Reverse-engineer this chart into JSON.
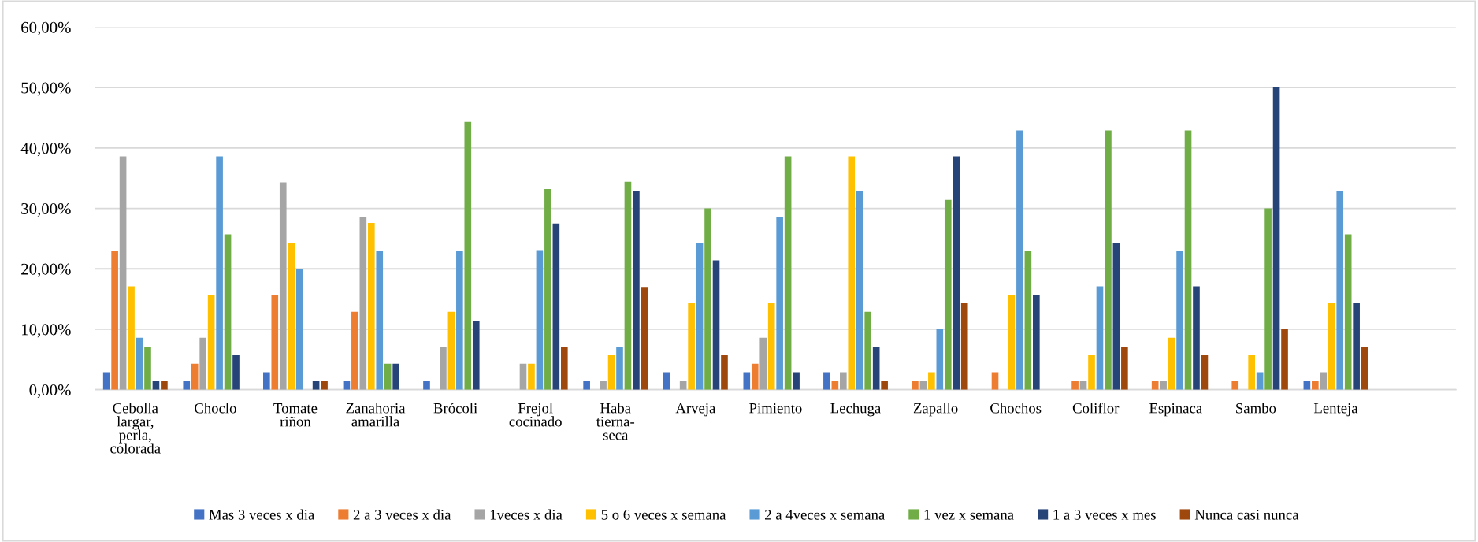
{
  "chart_data": {
    "type": "bar",
    "categories": [
      "Cebolla\nlargar,\nperla,\ncolorada",
      "Choclo",
      "Tomate\nriñon",
      "Zanahoria\namarilla",
      "Brócoli",
      "Frejol\ncocinado",
      "Haba\ntierna-\nseca",
      "Arveja",
      "Pimiento",
      "Lechuga",
      "Zapallo",
      "Chochos",
      "Coliflor",
      "Espinaca",
      "Sambo",
      "Lenteja",
      null
    ],
    "series": [
      {
        "name": "Mas 3 veces x dia",
        "color": "#4472c4",
        "values": [
          2.9,
          1.4,
          2.9,
          1.4,
          1.4,
          0,
          1.4,
          2.9,
          2.9,
          2.9,
          0,
          0,
          0,
          0,
          0,
          1.4,
          null
        ]
      },
      {
        "name": "2 a 3 veces x dia",
        "color": "#ed7d31",
        "values": [
          22.9,
          4.3,
          15.7,
          12.9,
          0,
          0,
          0,
          0,
          4.3,
          1.4,
          1.4,
          2.9,
          1.4,
          1.4,
          1.4,
          1.4,
          null
        ]
      },
      {
        "name": "1veces x dia",
        "color": "#a5a5a5",
        "values": [
          38.6,
          8.6,
          34.3,
          28.6,
          7.1,
          4.3,
          1.4,
          1.4,
          8.6,
          2.9,
          1.4,
          0,
          1.4,
          1.4,
          0,
          2.9,
          null
        ]
      },
      {
        "name": "5 o 6 veces x semana",
        "color": "#ffc000",
        "values": [
          17.1,
          15.7,
          24.3,
          27.6,
          12.9,
          4.3,
          5.7,
          14.3,
          14.3,
          38.6,
          2.9,
          15.7,
          5.7,
          8.6,
          5.7,
          14.3,
          null
        ]
      },
      {
        "name": "2 a 4veces x semana",
        "color": "#5b9bd5",
        "values": [
          8.6,
          38.6,
          20,
          22.9,
          22.9,
          23.1,
          7.1,
          24.3,
          28.6,
          32.9,
          10,
          42.9,
          17.1,
          22.9,
          2.9,
          32.9,
          null
        ]
      },
      {
        "name": "1 vez x semana",
        "color": "#70ad47",
        "values": [
          7.1,
          25.7,
          0,
          4.3,
          44.3,
          33.2,
          34.4,
          30,
          38.6,
          12.9,
          31.4,
          22.9,
          42.9,
          42.9,
          30,
          25.7,
          null
        ]
      },
      {
        "name": "1 a 3 veces x mes",
        "color": "#264478",
        "values": [
          1.4,
          5.7,
          1.4,
          4.3,
          11.4,
          27.5,
          32.8,
          21.4,
          2.9,
          7.1,
          38.6,
          15.7,
          24.3,
          17.1,
          50,
          14.3,
          null
        ]
      },
      {
        "name": "Nunca casi nunca",
        "color": "#9e480e",
        "values": [
          1.4,
          0,
          1.4,
          0,
          0,
          7.1,
          17.0,
          5.7,
          0,
          1.4,
          14.3,
          0,
          7.1,
          5.7,
          10,
          7.1,
          null
        ]
      }
    ],
    "ylim": [
      0,
      60
    ],
    "yticks": [
      {
        "value": 0,
        "label": "0,00%"
      },
      {
        "value": 10,
        "label": "10,00%"
      },
      {
        "value": 20,
        "label": "20,00%"
      },
      {
        "value": 30,
        "label": "30,00%"
      },
      {
        "value": 40,
        "label": "40,00%"
      },
      {
        "value": 50,
        "label": "50,00%"
      },
      {
        "value": 60,
        "label": "60,00%"
      }
    ],
    "grid": "y",
    "legend": "bottom"
  }
}
